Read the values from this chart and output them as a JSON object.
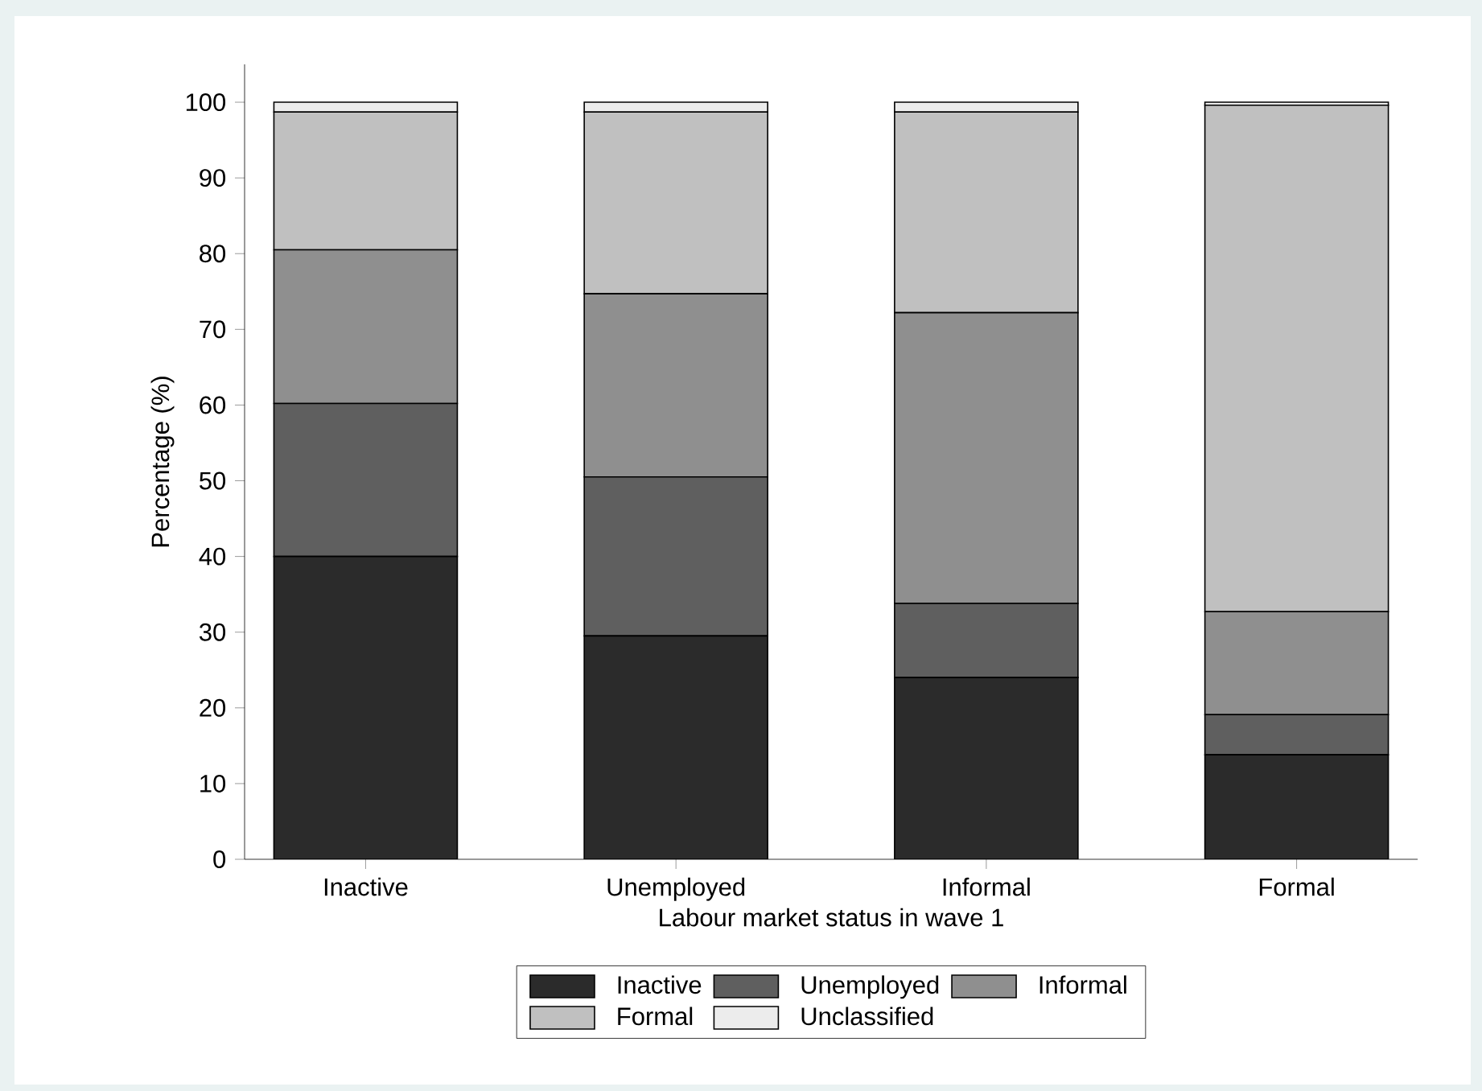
{
  "chart_data": {
    "type": "bar",
    "stacked": true,
    "xlabel": "Labour market status in wave 1",
    "ylabel": "Percentage (%)",
    "categories": [
      "Inactive",
      "Unemployed",
      "Informal",
      "Formal"
    ],
    "series": [
      {
        "name": "Inactive",
        "color": "#2b2b2b",
        "values": [
          40,
          29.5,
          24,
          13.8
        ]
      },
      {
        "name": "Unemployed",
        "color": "#5f5f5f",
        "values": [
          20.2,
          21,
          9.8,
          5.3
        ]
      },
      {
        "name": "Informal",
        "color": "#8f8f8f",
        "values": [
          20.3,
          24.2,
          38.4,
          13.6
        ]
      },
      {
        "name": "Formal",
        "color": "#c0c0c0",
        "values": [
          18.2,
          24,
          26.5,
          66.9
        ]
      },
      {
        "name": "Unclassified",
        "color": "#ececec",
        "values": [
          1.3,
          1.3,
          1.3,
          0.4
        ]
      }
    ],
    "ylim": [
      0,
      105
    ],
    "yticks": [
      0,
      10,
      20,
      30,
      40,
      50,
      60,
      70,
      80,
      90,
      100
    ],
    "grid": false,
    "legend": "bottom"
  }
}
